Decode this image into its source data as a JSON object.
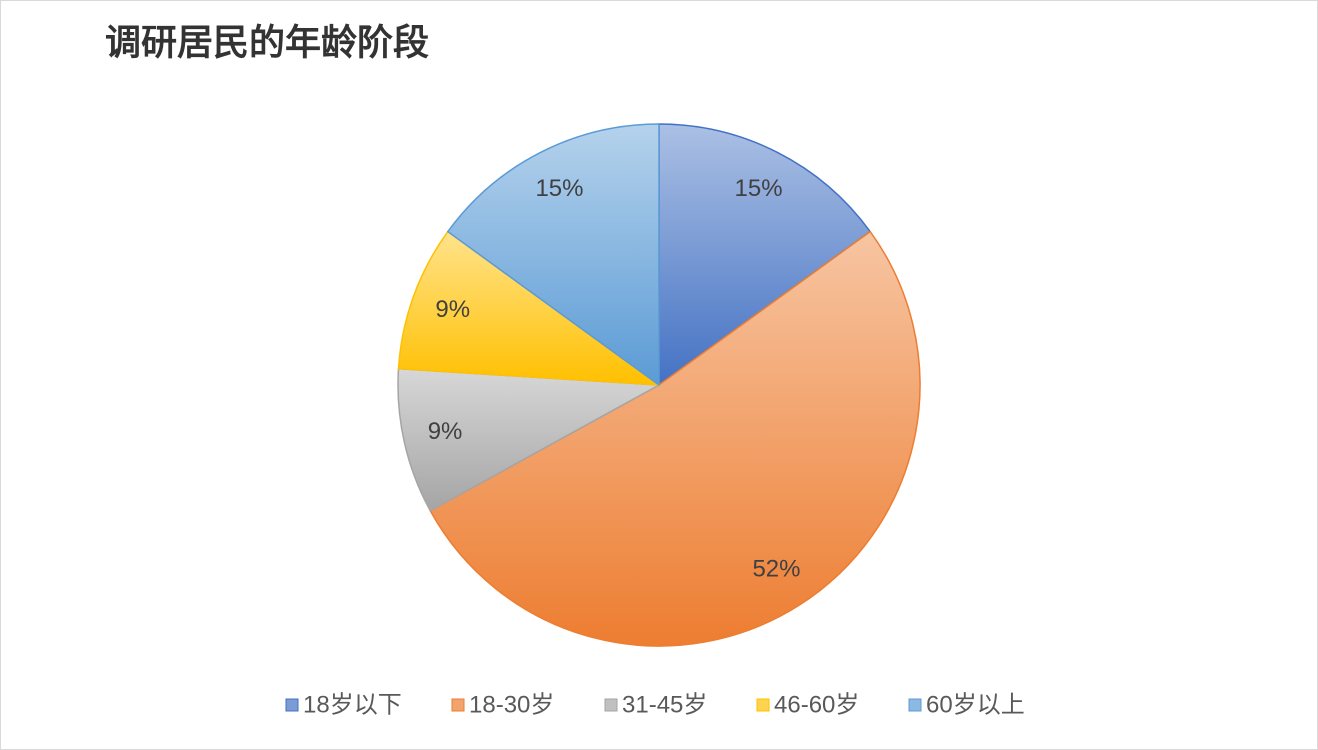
{
  "chart_data": {
    "type": "pie",
    "title": "调研居民的年龄阶段",
    "categories": [
      "18岁以下",
      "18-30岁",
      "31-45岁",
      "46-60岁",
      "60岁以上"
    ],
    "values": [
      15,
      52,
      9,
      9,
      15
    ],
    "value_labels": [
      "15%",
      "52%",
      "9%",
      "9%",
      "15%"
    ],
    "colors": [
      "#4472c4",
      "#ed7d31",
      "#a5a5a5",
      "#ffc000",
      "#5b9bd5"
    ],
    "legend": "bottom"
  }
}
